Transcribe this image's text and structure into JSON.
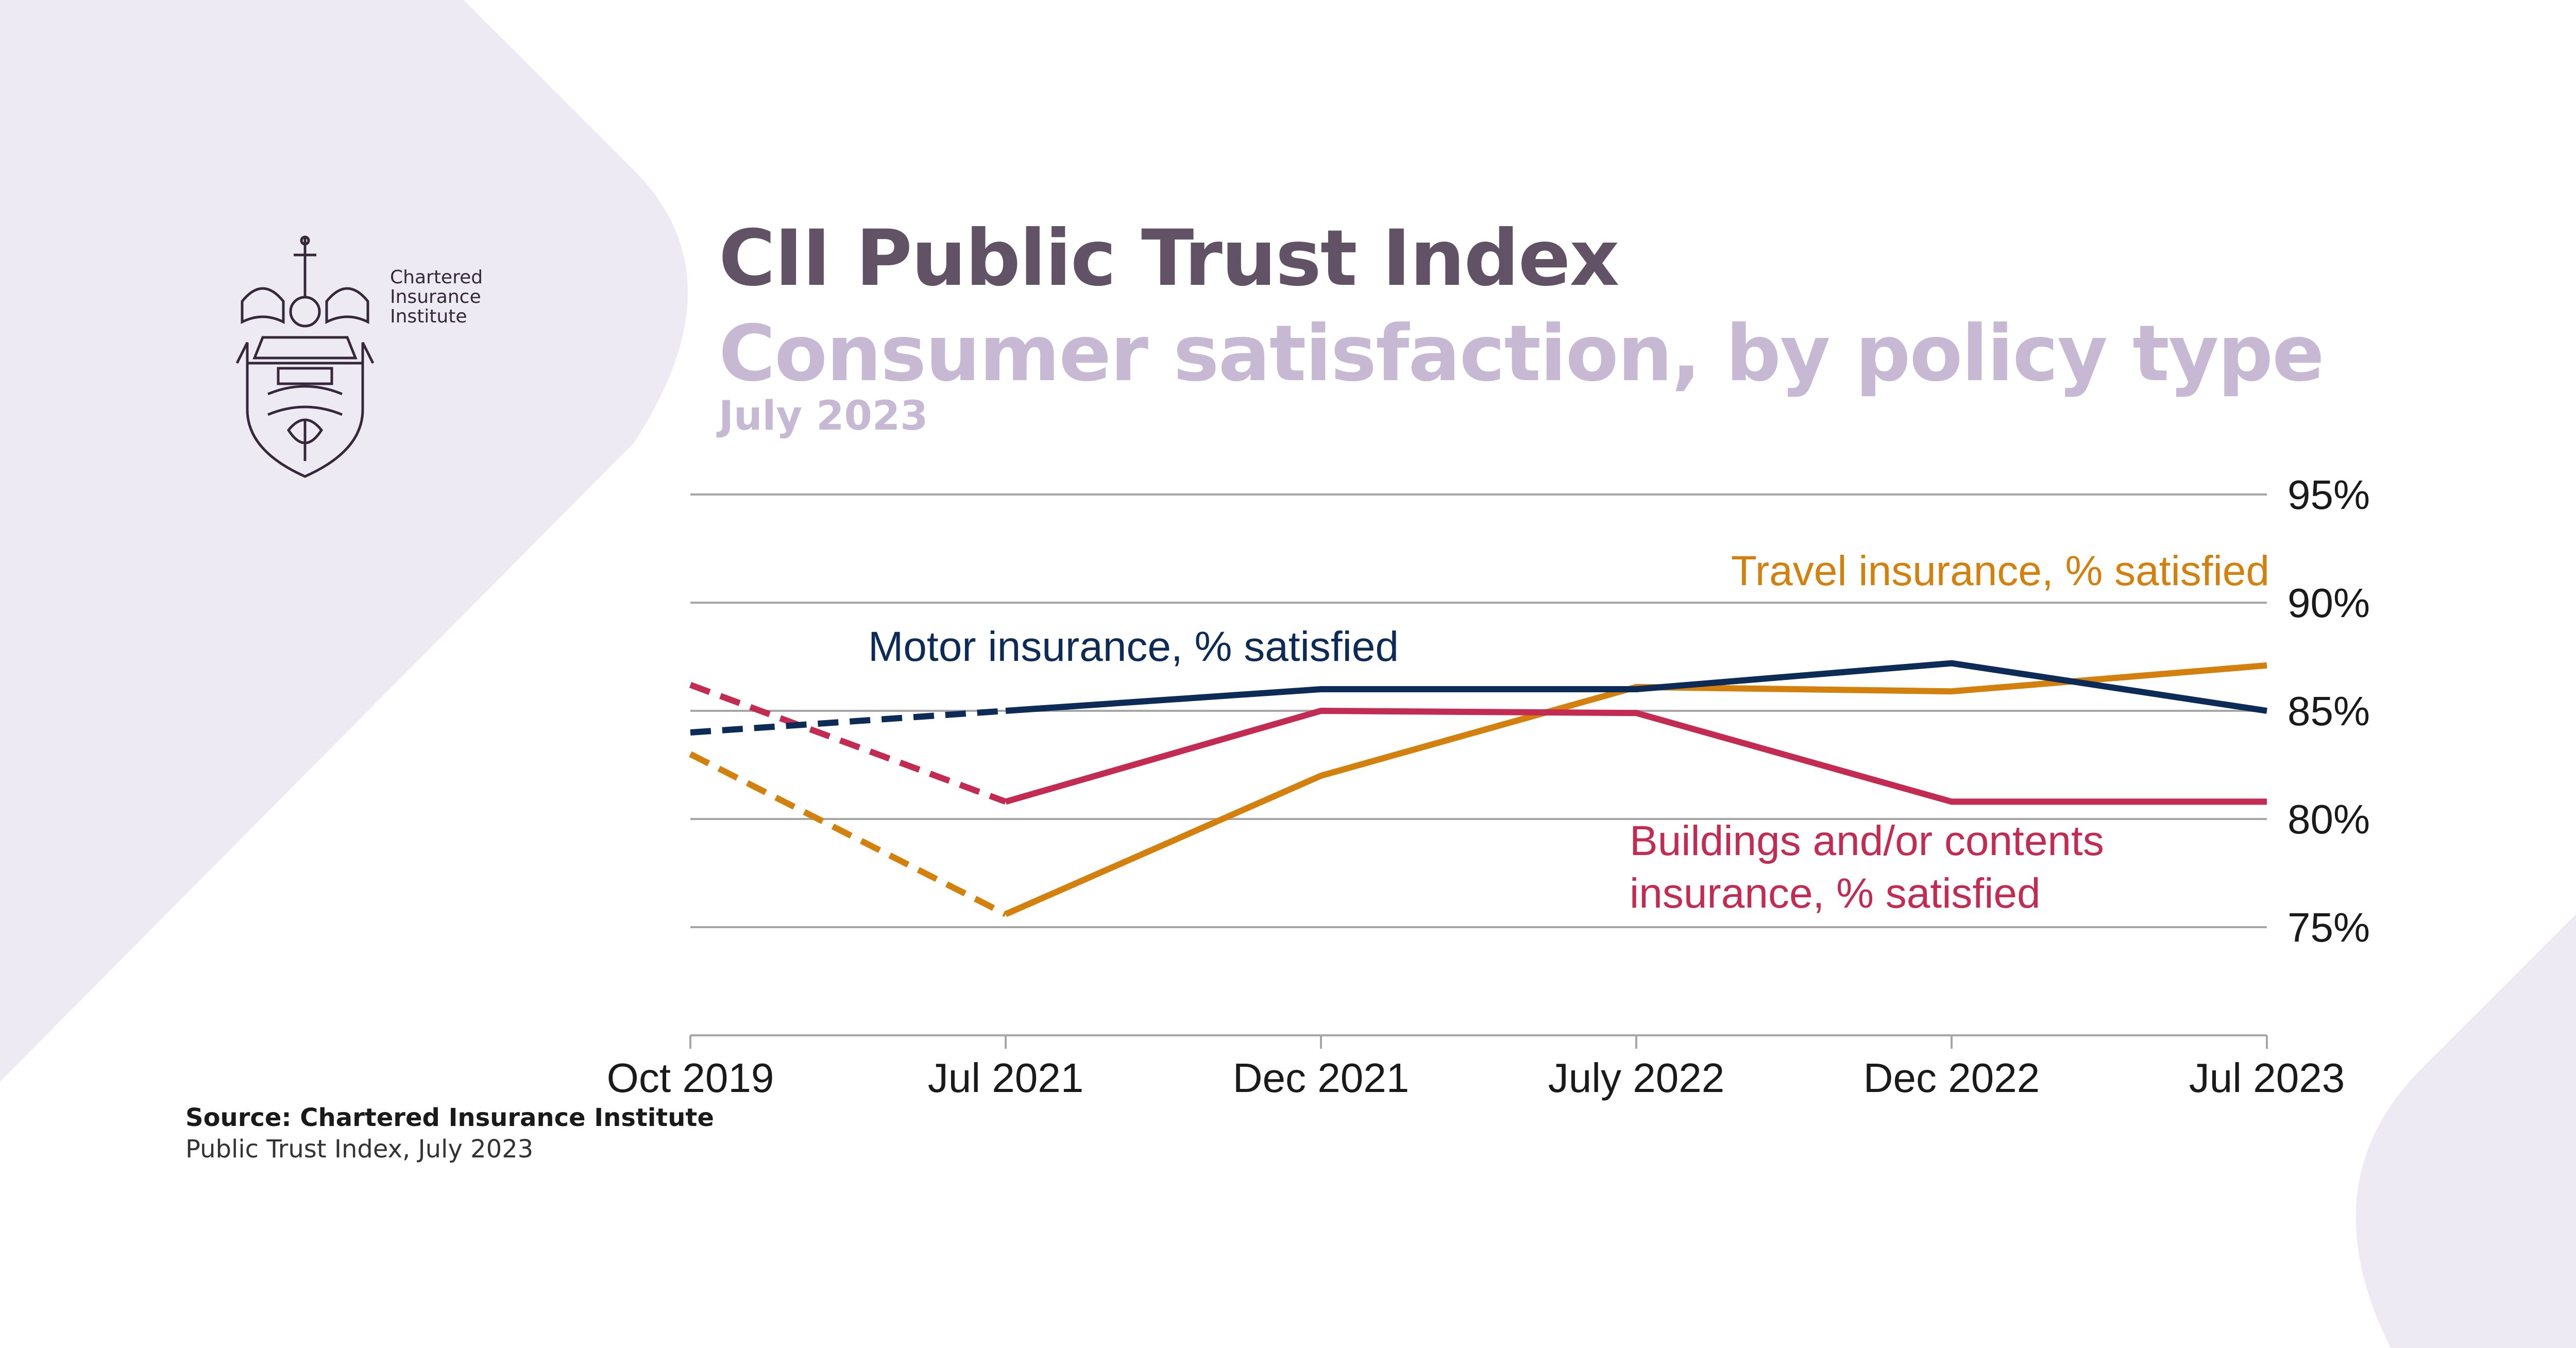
{
  "header": {
    "title": "CII Public Trust Index",
    "subtitle": "Consumer satisfaction, by policy type",
    "date": "July 2023"
  },
  "logo": {
    "name": "crest-icon",
    "text_lines": [
      "Chartered",
      "Insurance",
      "Institute"
    ]
  },
  "source": {
    "line1": "Source: Chartered Insurance Institute",
    "line2": "Public Trust Index, July 2023"
  },
  "colors": {
    "background_shape": "#eeeaf4",
    "title": "#625266",
    "subtitle": "#c7b8d4",
    "motor": "#0d2b57",
    "travel": "#d4800d",
    "buildings": "#c32b52",
    "gridline": "#a6a6a6",
    "text": "#1a1a1a"
  },
  "chart_data": {
    "type": "line",
    "categories": [
      "Oct 2019",
      "Jul 2021",
      "Dec 2021",
      "July 2022",
      "Dec 2022",
      "Jul 2023"
    ],
    "y_ticks": [
      "95%",
      "90%",
      "85%",
      "80%",
      "75%"
    ],
    "ylim": [
      70,
      95
    ],
    "grid": true,
    "dashed_segment_between": [
      "Oct 2019",
      "Jul 2021"
    ],
    "series": [
      {
        "name": "Motor insurance, % satisfied",
        "key": "motor",
        "values": [
          84,
          85,
          86,
          86,
          87.2,
          85
        ]
      },
      {
        "name": "Travel insurance, % satisfied",
        "key": "travel",
        "values": [
          83,
          75.6,
          82,
          86.1,
          85.9,
          87.1
        ]
      },
      {
        "name": "Buildings and/or contents insurance, % satisfied",
        "label_lines": [
          "Buildings and/or contents",
          "insurance, % satisfied"
        ],
        "key": "buildings",
        "values": [
          86.2,
          80.8,
          85,
          84.9,
          80.8,
          80.8
        ]
      }
    ]
  }
}
